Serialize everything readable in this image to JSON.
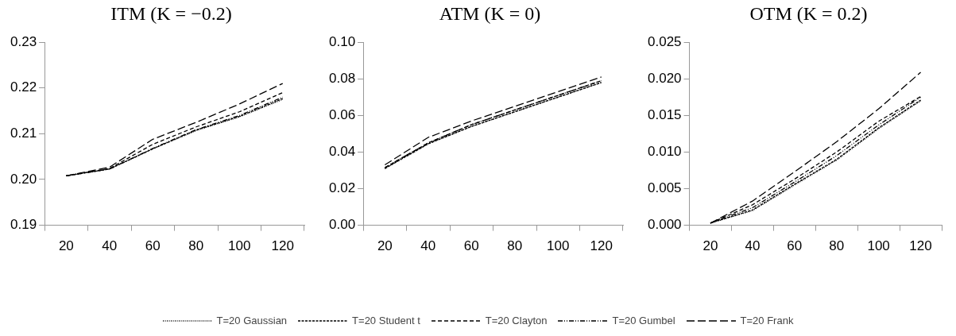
{
  "chart_data": [
    {
      "type": "line",
      "title": "ITM (K = −0.2)",
      "categories": [
        "20",
        "40",
        "60",
        "80",
        "100",
        "120"
      ],
      "ylim": [
        0.19,
        0.23
      ],
      "yticks": [
        0.19,
        {
          "value": 0.2,
          "label": "0.20"
        },
        0.21,
        0.22,
        0.23
      ],
      "grid": false,
      "legend": "bottom",
      "marker": "none",
      "series": [
        {
          "name": "T=20 Gaussian",
          "color": "#000000",
          "line_style": "dotted",
          "values": [
            0.2008,
            0.2023,
            0.2067,
            0.2107,
            0.2137,
            0.2175
          ]
        },
        {
          "name": "T=20 Student t",
          "color": "#000000",
          "line_style": "dashed",
          "values": [
            0.2008,
            0.2023,
            0.2067,
            0.2108,
            0.2138,
            0.2177
          ]
        },
        {
          "name": "T=20 Clayton",
          "color": "#000000",
          "line_style": "dashed",
          "values": [
            0.2008,
            0.2024,
            0.2077,
            0.2115,
            0.2148,
            0.219
          ]
        },
        {
          "name": "T=20 Gumbel",
          "color": "#000000",
          "line_style": "dashed",
          "values": [
            0.2008,
            0.2023,
            0.2068,
            0.2109,
            0.214,
            0.218
          ]
        },
        {
          "name": "T=20 Frank",
          "color": "#000000",
          "line_style": "dashed",
          "values": [
            0.2008,
            0.2027,
            0.2088,
            0.2125,
            0.2165,
            0.221
          ]
        }
      ]
    },
    {
      "type": "line",
      "title": "ATM (K = 0)",
      "categories": [
        "20",
        "40",
        "60",
        "80",
        "100",
        "120"
      ],
      "ylim": [
        0,
        0.1
      ],
      "yticks": [
        {
          "value": 0,
          "label": "0.00"
        },
        {
          "value": 0.02,
          "label": "0.02"
        },
        {
          "value": 0.04,
          "label": "0.04"
        },
        {
          "value": 0.06,
          "label": "0.06"
        },
        {
          "value": 0.08,
          "label": "0.08"
        },
        {
          "value": 0.1,
          "label": "0.10"
        }
      ],
      "grid": false,
      "marker": "none",
      "series": [
        {
          "color": "#000000",
          "line_style": "dotted",
          "values": [
            0.031,
            0.0445,
            0.054,
            0.062,
            0.07,
            0.078
          ]
        },
        {
          "color": "#000000",
          "line_style": "dashed",
          "values": [
            0.031,
            0.0445,
            0.054,
            0.062,
            0.07,
            0.078
          ]
        },
        {
          "color": "#000000",
          "line_style": "dashed",
          "values": [
            0.0315,
            0.045,
            0.055,
            0.063,
            0.071,
            0.079
          ]
        },
        {
          "color": "#000000",
          "line_style": "dashed",
          "values": [
            0.0315,
            0.045,
            0.055,
            0.063,
            0.071,
            0.079
          ]
        },
        {
          "color": "#000000",
          "line_style": "dashed",
          "values": [
            0.033,
            0.048,
            0.057,
            0.065,
            0.073,
            0.081
          ]
        }
      ]
    },
    {
      "type": "line",
      "title": "OTM (K = 0.2)",
      "categories": [
        "20",
        "40",
        "60",
        "80",
        "100",
        "120"
      ],
      "ylim": [
        0,
        0.025
      ],
      "yticks": [
        {
          "value": 0,
          "label": "0.000"
        },
        {
          "value": 0.005,
          "label": "0.005"
        },
        {
          "value": 0.01,
          "label": "0.010"
        },
        {
          "value": 0.015,
          "label": "0.015"
        },
        {
          "value": 0.02,
          "label": "0.020"
        },
        {
          "value": 0.025,
          "label": "0.025"
        }
      ],
      "grid": false,
      "marker": "none",
      "series": [
        {
          "color": "#000000",
          "line_style": "dotted",
          "values": [
            0.0003,
            0.002,
            0.0055,
            0.0089,
            0.0132,
            0.017
          ]
        },
        {
          "color": "#000000",
          "line_style": "dashed",
          "values": [
            0.0003,
            0.0021,
            0.0056,
            0.009,
            0.0133,
            0.0171
          ]
        },
        {
          "color": "#000000",
          "line_style": "dashed",
          "values": [
            0.0003,
            0.0028,
            0.0063,
            0.01,
            0.0142,
            0.0176
          ]
        },
        {
          "color": "#000000",
          "line_style": "dashed",
          "values": [
            0.0003,
            0.0024,
            0.0059,
            0.0095,
            0.0137,
            0.0175
          ]
        },
        {
          "color": "#000000",
          "line_style": "dashed",
          "values": [
            0.0003,
            0.0033,
            0.0073,
            0.0114,
            0.0159,
            0.0209
          ]
        }
      ]
    }
  ]
}
